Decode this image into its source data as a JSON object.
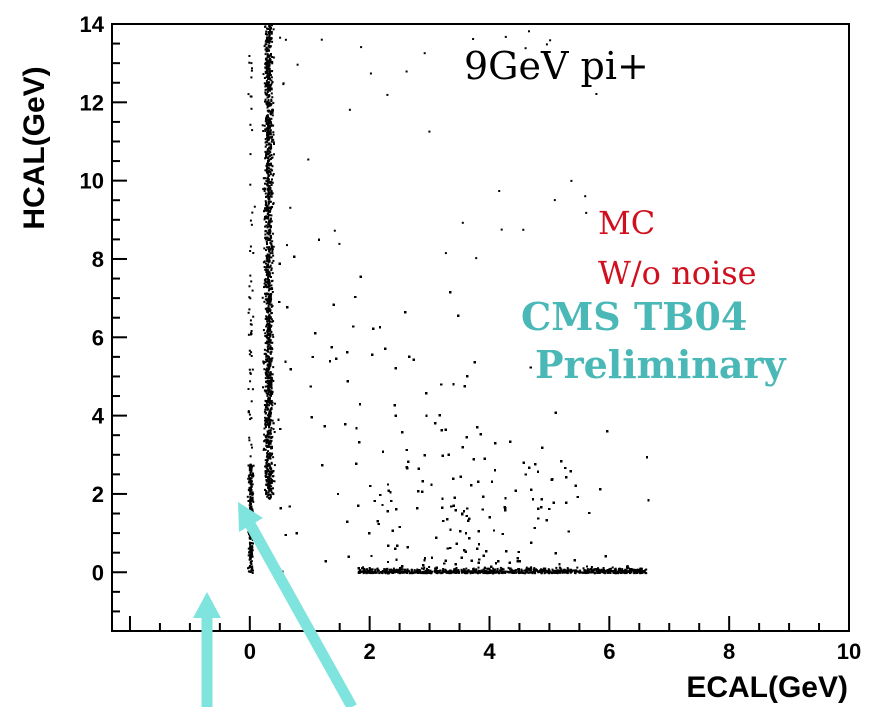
{
  "chart_data": {
    "type": "scatter",
    "title": "",
    "xlabel": "ECAL(GeV)",
    "ylabel": "HCAL(GeV)",
    "xlim": [
      -2.3,
      10
    ],
    "ylim": [
      -1.5,
      14
    ],
    "x_ticks": [
      0,
      2,
      4,
      6,
      8,
      10
    ],
    "y_ticks": [
      0,
      2,
      4,
      6,
      8,
      10,
      12,
      14
    ],
    "grid": false,
    "legend": "none",
    "annotations": {
      "beam": "9GeV pi+",
      "mc": "MC",
      "noise": "W/o noise",
      "exp": "CMS TB04",
      "status": "Preliminary"
    },
    "colors": {
      "points": "#000000",
      "annotation_red": "#d0101e",
      "annotation_teal": "#4ab8b6",
      "arrow": "#7fe3de"
    },
    "series": [
      {
        "values": [
          [
            0.0,
            0.0
          ],
          [
            0.0,
            0.4
          ],
          [
            0.0,
            1.0
          ],
          [
            0.0,
            1.6
          ],
          [
            0.0,
            2.6
          ],
          [
            0.3,
            2.0
          ],
          [
            0.3,
            3.0
          ],
          [
            0.3,
            5.0
          ],
          [
            0.3,
            7.0
          ],
          [
            0.3,
            9.0
          ],
          [
            0.3,
            11.0
          ],
          [
            0.3,
            13.5
          ],
          [
            0.6,
            9.5
          ],
          [
            0.9,
            7.5
          ],
          [
            1.3,
            6.0
          ],
          [
            1.8,
            4.5
          ],
          [
            2.2,
            3.5
          ],
          [
            2.7,
            2.5
          ],
          [
            3.0,
            2.0
          ],
          [
            3.3,
            1.5
          ],
          [
            3.8,
            1.0
          ],
          [
            4.2,
            0.6
          ],
          [
            4.7,
            0.3
          ],
          [
            5.2,
            0.15
          ],
          [
            2.0,
            0.0
          ],
          [
            3.0,
            0.0
          ],
          [
            4.0,
            0.0
          ],
          [
            5.0,
            0.0
          ],
          [
            6.0,
            0.0
          ],
          [
            6.6,
            0.0
          ]
        ]
      }
    ]
  }
}
